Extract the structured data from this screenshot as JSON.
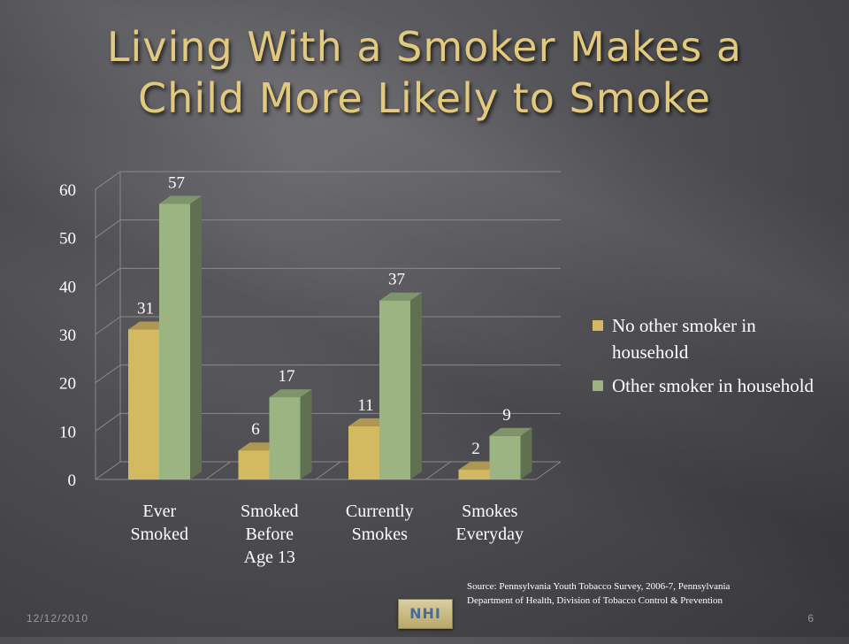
{
  "slide": {
    "title_line1": "Living With a Smoker Makes a",
    "title_line2": "Child More Likely to Smoke",
    "source_line1": "Source: Pennsylvania Youth Tobacco Survey, 2006-7, Pennsylvania",
    "source_line2": "Department of Health, Division of Tobacco Control & Prevention",
    "date": "12/12/2010",
    "page_number": "6",
    "logo_text": "NHI"
  },
  "chart_data": {
    "type": "bar",
    "categories": [
      [
        "Ever",
        "Smoked"
      ],
      [
        "Smoked",
        "Before",
        "Age 13"
      ],
      [
        "Currently",
        "Smokes"
      ],
      [
        "Smokes",
        "Everyday"
      ]
    ],
    "series": [
      {
        "name": "No other smoker in household",
        "values": [
          31,
          6,
          11,
          2
        ],
        "color": "#d4b963"
      },
      {
        "name": "Other smoker in household",
        "values": [
          57,
          17,
          37,
          9
        ],
        "color": "#9cb482"
      }
    ],
    "yticks": [
      0,
      10,
      20,
      30,
      40,
      50,
      60
    ],
    "ylim": [
      0,
      60
    ],
    "legend_position": "right",
    "grid": true
  }
}
